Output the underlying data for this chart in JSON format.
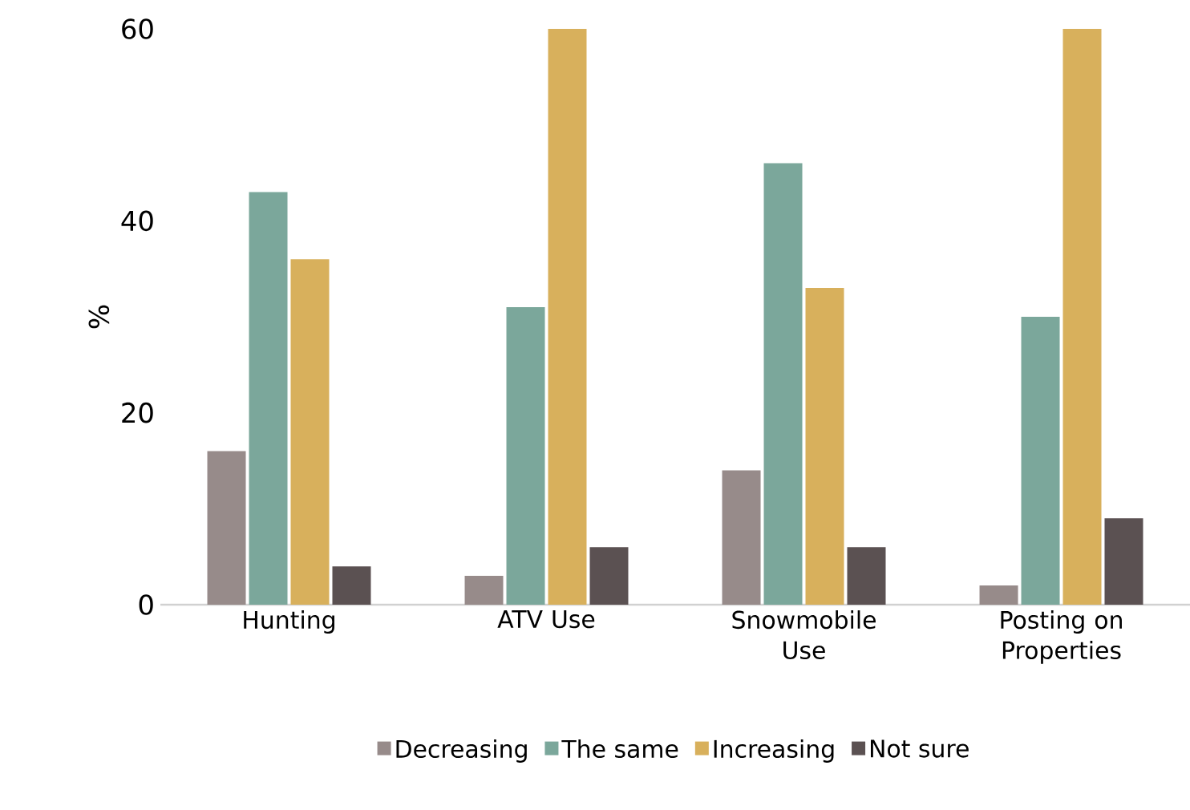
{
  "chart_data": {
    "type": "bar",
    "ylabel": "%",
    "categories": [
      "Hunting",
      "ATV Use",
      "Snowmobile Use",
      "Posting on Properties"
    ],
    "series": [
      {
        "name": "Decreasing",
        "color": "#978b8a",
        "values": [
          16,
          3,
          14,
          2
        ]
      },
      {
        "name": "The same",
        "color": "#7ba79b",
        "values": [
          43,
          31,
          46,
          30
        ]
      },
      {
        "name": "Increasing",
        "color": "#d8b05c",
        "values": [
          36,
          60,
          33,
          60
        ]
      },
      {
        "name": "Not sure",
        "color": "#5b5152",
        "values": [
          4,
          6,
          6,
          9
        ]
      }
    ],
    "ylim": [
      0,
      60
    ],
    "yticks": [
      0,
      20,
      40,
      60
    ],
    "legend": "bottom"
  }
}
